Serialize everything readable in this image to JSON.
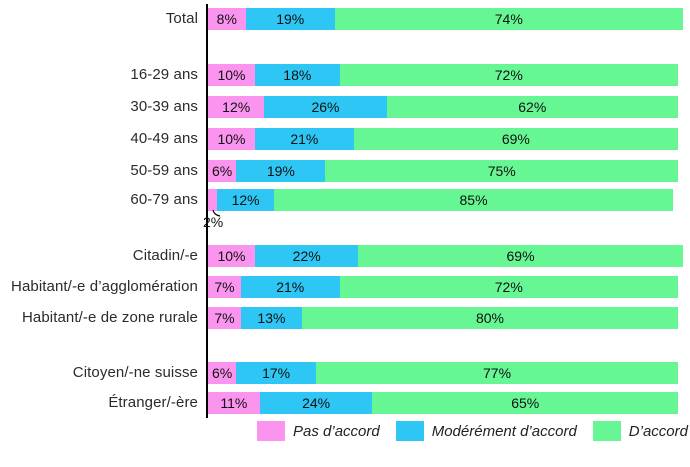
{
  "chart_data": {
    "type": "bar",
    "orientation": "horizontal",
    "stacked": true,
    "unit": "%",
    "title": "",
    "xlabel": "",
    "ylabel": "",
    "grid": false,
    "legend_position": "bottom",
    "series": [
      {
        "name": "Pas d’accord",
        "color": "#FB94EE"
      },
      {
        "name": "Modérément d’accord",
        "color": "#2EC6F4"
      },
      {
        "name": "D’accord",
        "color": "#66F794"
      }
    ],
    "rows": [
      {
        "label": "Total",
        "values": [
          8,
          19,
          74
        ]
      },
      {
        "label": "16-29 ans",
        "values": [
          10,
          18,
          72
        ]
      },
      {
        "label": "30-39 ans",
        "values": [
          12,
          26,
          62
        ]
      },
      {
        "label": "40-49 ans",
        "values": [
          10,
          21,
          69
        ]
      },
      {
        "label": "50-59 ans",
        "values": [
          6,
          19,
          75
        ]
      },
      {
        "label": "60-79 ans",
        "values": [
          2,
          12,
          85
        ],
        "callout": "2%"
      },
      {
        "label": "Citadin/-e",
        "values": [
          10,
          22,
          69
        ]
      },
      {
        "label": "Habitant/-e d’agglomération",
        "values": [
          7,
          21,
          72
        ]
      },
      {
        "label": "Habitant/-e de zone rurale",
        "values": [
          7,
          13,
          80
        ]
      },
      {
        "label": "Citoyen/-ne suisse",
        "values": [
          6,
          17,
          77
        ]
      },
      {
        "label": "Étranger/-ère",
        "values": [
          11,
          24,
          65
        ]
      }
    ],
    "value_labels_shown": true,
    "xlim": [
      0,
      100
    ]
  }
}
